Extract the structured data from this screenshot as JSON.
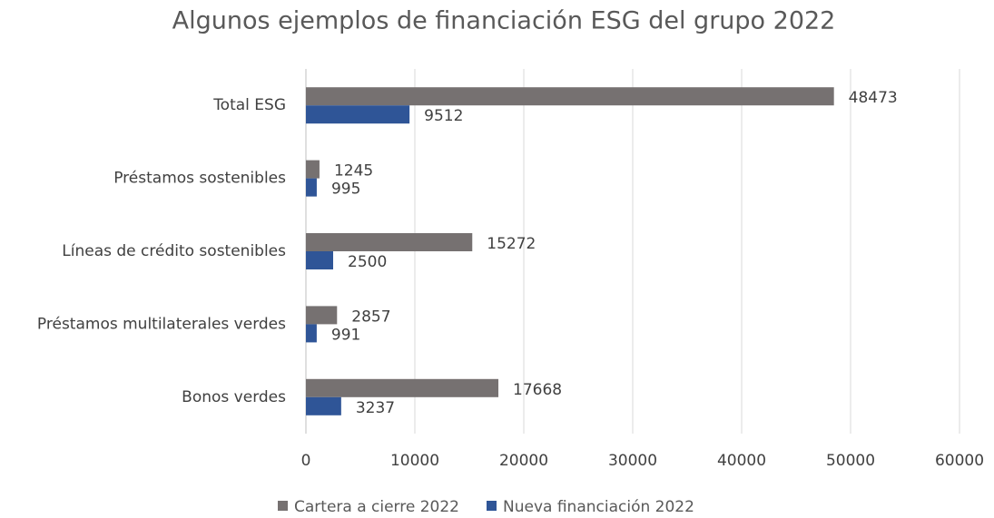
{
  "chart_data": {
    "type": "bar",
    "orientation": "horizontal",
    "title": "Algunos ejemplos de financiación ESG del grupo 2022",
    "categories": [
      "Total ESG",
      "Préstamos sostenibles",
      "Líneas de crédito sostenibles",
      "Préstamos multilaterales verdes",
      "Bonos verdes"
    ],
    "series": [
      {
        "name": "Cartera a cierre 2022",
        "color": "#767171",
        "values": [
          48473,
          1245,
          15272,
          2857,
          17668
        ]
      },
      {
        "name": "Nueva financiación 2022",
        "color": "#2f5597",
        "values": [
          9512,
          995,
          2500,
          991,
          3237
        ]
      }
    ],
    "xlim": [
      0,
      60000
    ],
    "xticks": [
      0,
      10000,
      20000,
      30000,
      40000,
      50000,
      60000
    ],
    "grid": true,
    "legend": "bottom"
  }
}
